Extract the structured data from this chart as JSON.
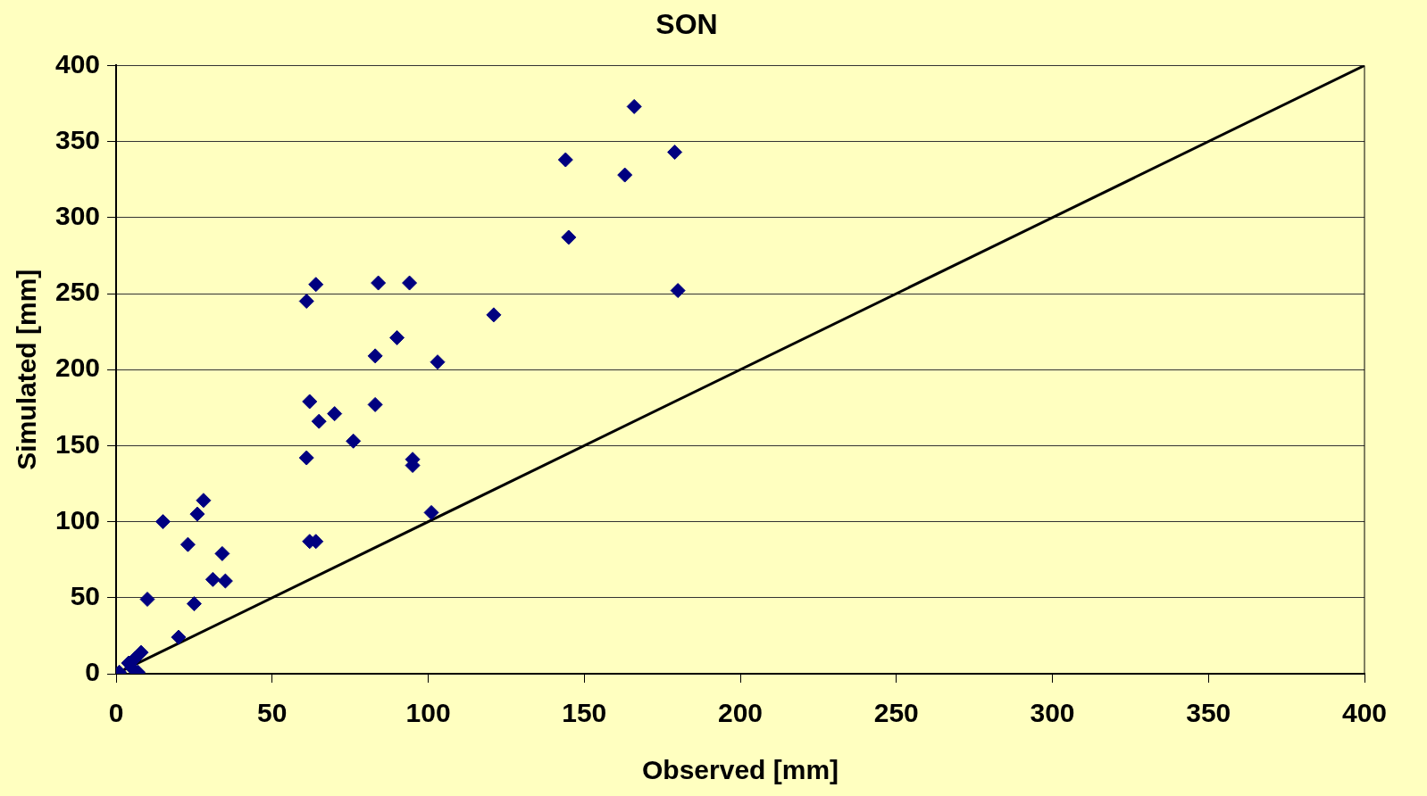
{
  "chart_data": {
    "type": "scatter",
    "title": "SON",
    "xlabel": "Observed [mm]",
    "ylabel": "Simulated [mm]",
    "xlim": [
      0,
      400
    ],
    "xticks": [
      0,
      50,
      100,
      150,
      200,
      250,
      300,
      350,
      400
    ],
    "ylim": [
      0,
      400
    ],
    "yticks": [
      0,
      50,
      100,
      150,
      200,
      250,
      300,
      350,
      400
    ],
    "grid": "y",
    "legend": false,
    "marker": "diamond",
    "series": [
      {
        "color": "#000080",
        "x": [
          1,
          4,
          6,
          8,
          7,
          5,
          10,
          15,
          20,
          23,
          25,
          26,
          28,
          31,
          34,
          35,
          61,
          61,
          62,
          62,
          64,
          64,
          65,
          70,
          76,
          83,
          83,
          84,
          90,
          94,
          95,
          95,
          101,
          103,
          121,
          144,
          145,
          163,
          166,
          179,
          180
        ],
        "values": [
          1,
          7,
          10,
          14,
          1,
          4,
          49,
          100,
          24,
          85,
          46,
          105,
          114,
          62,
          79,
          61,
          142,
          245,
          87,
          179,
          87,
          256,
          166,
          171,
          153,
          177,
          209,
          257,
          221,
          257,
          141,
          137,
          106,
          205,
          236,
          338,
          287,
          328,
          373,
          343,
          252
        ]
      },
      {
        "type": "line",
        "color": "#000000",
        "marker": "none",
        "x": [
          0,
          400
        ],
        "values": [
          0,
          400
        ]
      }
    ]
  }
}
